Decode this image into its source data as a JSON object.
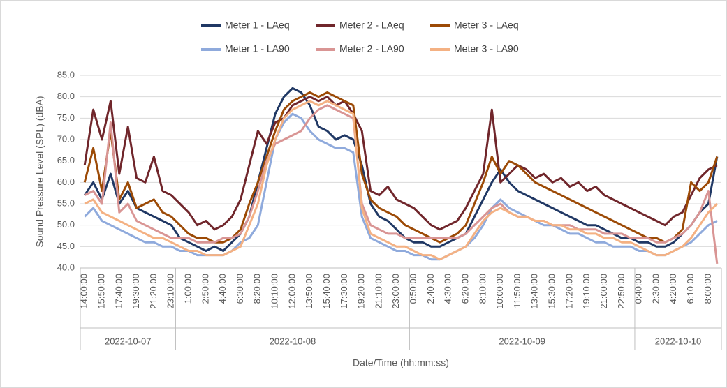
{
  "chart_data": {
    "type": "line",
    "ylabel": "Sound Pressure Level (SPL) (dBA)",
    "xlabel": "Date/Time (hh:mm:ss)",
    "ylim": [
      40,
      85
    ],
    "yticks": [
      {
        "value": 40,
        "label": "40.0"
      },
      {
        "value": 45,
        "label": "45.0"
      },
      {
        "value": 50,
        "label": "50.0"
      },
      {
        "value": 55,
        "label": "55.0"
      },
      {
        "value": 60,
        "label": "60.0"
      },
      {
        "value": 65,
        "label": "65.0"
      },
      {
        "value": 70,
        "label": "70.0"
      },
      {
        "value": 75,
        "label": "75.0"
      },
      {
        "value": 80,
        "label": "80.0"
      },
      {
        "value": 85,
        "label": "85.0"
      }
    ],
    "grid": true,
    "legend": "top",
    "categories": [
      "14:00:00",
      null,
      "15:50:00",
      null,
      "17:40:00",
      null,
      "19:30:00",
      null,
      "21:20:00",
      null,
      "23:10:00",
      null,
      "1:00:00",
      null,
      "2:50:00",
      null,
      "4:40:00",
      null,
      "6:30:00",
      null,
      "8:20:00",
      null,
      "10:10:00",
      null,
      "12:00:00",
      null,
      "13:50:00",
      null,
      "15:40:00",
      null,
      "17:30:00",
      null,
      "19:20:00",
      null,
      "21:10:00",
      null,
      "23:00:00",
      null,
      "0:50:00",
      null,
      "2:40:00",
      null,
      "4:30:00",
      null,
      "6:20:00",
      null,
      "8:10:00",
      null,
      "10:00:00",
      null,
      "11:50:00",
      null,
      "13:40:00",
      null,
      "15:30:00",
      null,
      "17:20:00",
      null,
      "19:10:00",
      null,
      "21:00:00",
      null,
      "22:50:00",
      null,
      "0:40:00",
      null,
      "2:30:00",
      null,
      "4:20:00",
      null,
      "6:10:00",
      null,
      "8:00:00",
      null
    ],
    "x_groups": [
      {
        "label": "2022-10-07",
        "count": 11
      },
      {
        "label": "2022-10-08",
        "count": 27
      },
      {
        "label": "2022-10-09",
        "count": 26
      },
      {
        "label": "2022-10-10",
        "count": 10
      }
    ],
    "series": [
      {
        "name": "Meter 1 - LAeq",
        "color": "#203864",
        "values": [
          57,
          60,
          56,
          62,
          55,
          58,
          54,
          53,
          52,
          51,
          50,
          47,
          46,
          45,
          44,
          45,
          44,
          46,
          48,
          52,
          60,
          68,
          76,
          80,
          82,
          81,
          78,
          73,
          72,
          70,
          71,
          70,
          64,
          55,
          52,
          51,
          49,
          47,
          46,
          46,
          45,
          45,
          46,
          47,
          48,
          52,
          56,
          60,
          63,
          60,
          58,
          57,
          56,
          55,
          54,
          53,
          52,
          51,
          50,
          50,
          49,
          48,
          47,
          47,
          46,
          46,
          45,
          45,
          46,
          48,
          50,
          53,
          55,
          66
        ]
      },
      {
        "name": "Meter 2 - LAeq",
        "color": "#70262b",
        "values": [
          64,
          77,
          70,
          79,
          62,
          73,
          61,
          60,
          66,
          58,
          57,
          55,
          53,
          50,
          51,
          49,
          50,
          52,
          56,
          64,
          72,
          69,
          74,
          75,
          78,
          79,
          80,
          79,
          80,
          78,
          79,
          76,
          72,
          58,
          57,
          59,
          56,
          55,
          54,
          52,
          50,
          49,
          50,
          51,
          54,
          58,
          62,
          77,
          60,
          62,
          64,
          63,
          61,
          62,
          60,
          61,
          59,
          60,
          58,
          59,
          57,
          56,
          55,
          54,
          53,
          52,
          51,
          50,
          52,
          53,
          57,
          61,
          63,
          64
        ]
      },
      {
        "name": "Meter 3 - LAeq",
        "color": "#9c4a06",
        "values": [
          60,
          68,
          58,
          72,
          56,
          60,
          54,
          55,
          56,
          53,
          52,
          50,
          48,
          47,
          47,
          46,
          46,
          47,
          49,
          55,
          60,
          66,
          72,
          77,
          79,
          80,
          81,
          80,
          81,
          80,
          79,
          78,
          62,
          56,
          54,
          53,
          52,
          50,
          49,
          48,
          47,
          46,
          47,
          48,
          50,
          55,
          60,
          66,
          62,
          65,
          64,
          62,
          60,
          59,
          58,
          57,
          56,
          55,
          54,
          53,
          52,
          51,
          50,
          49,
          48,
          47,
          47,
          46,
          47,
          49,
          60,
          58,
          60,
          66
        ]
      },
      {
        "name": "Meter 1 - LA90",
        "color": "#8faadc",
        "values": [
          52,
          54,
          51,
          50,
          49,
          48,
          47,
          46,
          46,
          45,
          45,
          44,
          44,
          43,
          43,
          43,
          43,
          44,
          46,
          47,
          50,
          60,
          70,
          74,
          76,
          75,
          72,
          70,
          69,
          68,
          68,
          67,
          52,
          47,
          46,
          45,
          44,
          44,
          43,
          43,
          42,
          42,
          43,
          44,
          45,
          47,
          50,
          54,
          56,
          54,
          53,
          52,
          51,
          50,
          50,
          49,
          48,
          48,
          47,
          46,
          46,
          45,
          45,
          45,
          44,
          44,
          43,
          43,
          44,
          45,
          46,
          48,
          50,
          51
        ]
      },
      {
        "name": "Meter 2 - LA90",
        "color": "#d99594",
        "values": [
          57,
          58,
          55,
          74,
          53,
          55,
          51,
          50,
          49,
          48,
          47,
          47,
          47,
          46,
          46,
          46,
          47,
          47,
          48,
          52,
          58,
          65,
          69,
          70,
          71,
          72,
          75,
          77,
          78,
          77,
          76,
          75,
          55,
          50,
          49,
          48,
          48,
          47,
          47,
          47,
          47,
          47,
          47,
          47,
          48,
          50,
          52,
          54,
          55,
          53,
          52,
          52,
          51,
          51,
          50,
          50,
          50,
          49,
          49,
          49,
          48,
          48,
          48,
          47,
          47,
          47,
          46,
          46,
          47,
          48,
          50,
          53,
          58,
          41
        ]
      },
      {
        "name": "Meter 3 - LA90",
        "color": "#f4b183",
        "values": [
          55,
          56,
          53,
          52,
          51,
          50,
          49,
          48,
          47,
          47,
          46,
          45,
          44,
          44,
          43,
          43,
          43,
          44,
          45,
          50,
          55,
          64,
          70,
          75,
          77,
          78,
          79,
          78,
          79,
          78,
          77,
          76,
          54,
          48,
          47,
          46,
          45,
          45,
          44,
          43,
          43,
          42,
          43,
          44,
          45,
          48,
          51,
          53,
          54,
          53,
          52,
          52,
          51,
          51,
          50,
          50,
          49,
          49,
          48,
          48,
          47,
          47,
          46,
          46,
          45,
          44,
          43,
          43,
          44,
          45,
          47,
          50,
          53,
          55
        ]
      }
    ]
  }
}
